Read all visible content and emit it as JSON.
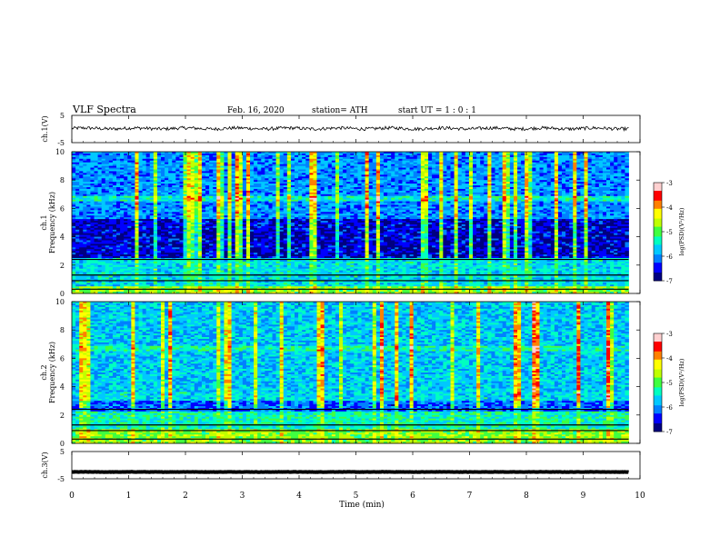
{
  "header": {
    "title": "VLF Spectra",
    "date": "Feb. 16, 2020",
    "station": "station= ATH",
    "start": "start UT = 1 : 0 : 1"
  },
  "colors": {
    "colormap": [
      "#000080",
      "#0000ff",
      "#0080ff",
      "#00c8ff",
      "#00ffc0",
      "#40ff40",
      "#c0ff00",
      "#ffff00",
      "#ff8000",
      "#ff0000",
      "#ffd0d0"
    ]
  },
  "chart_data": [
    {
      "type": "line",
      "name": "ch1-voltage",
      "ylabel": "ch.1(V)",
      "ylim": [
        -5,
        5
      ],
      "yticks": [
        "5",
        "-5"
      ],
      "xlim": [
        0,
        10
      ],
      "approx_level": 0.2,
      "approx_noise": 0.6
    },
    {
      "type": "heatmap",
      "name": "ch1-spectrogram",
      "ylabel_line1": "ch.1",
      "ylabel_line2": "Frequency (kHz)",
      "ylim": [
        0,
        10
      ],
      "yticks": [
        "0",
        "2",
        "4",
        "6",
        "8",
        "10"
      ],
      "xlim": [
        0,
        10
      ],
      "colorbar": {
        "label": "log(PSD)(V²/Hz)",
        "ticks": [
          "-3",
          "-4",
          "-5",
          "-6",
          "-7"
        ],
        "range": [
          -7,
          -3
        ]
      }
    },
    {
      "type": "heatmap",
      "name": "ch2-spectrogram",
      "ylabel_line1": "ch.2",
      "ylabel_line2": "Frequency (kHz)",
      "ylim": [
        0,
        10
      ],
      "yticks": [
        "0",
        "2",
        "4",
        "6",
        "8",
        "10"
      ],
      "xlim": [
        0,
        10
      ],
      "colorbar": {
        "label": "log(PSD)(V²/Hz)",
        "ticks": [
          "-3",
          "-4",
          "-5",
          "-6",
          "-7"
        ],
        "range": [
          -7,
          -3
        ]
      }
    },
    {
      "type": "line",
      "name": "ch3-voltage",
      "ylabel": "ch.3(V)",
      "ylim": [
        -5,
        5
      ],
      "yticks": [
        "5",
        "-5"
      ],
      "xlim": [
        0,
        10
      ],
      "approx_level": -2.5,
      "approx_noise": 0.05
    }
  ],
  "xaxis": {
    "label": "Time (min)",
    "ticks": [
      "0",
      "1",
      "2",
      "3",
      "4",
      "5",
      "6",
      "7",
      "8",
      "9",
      "10"
    ],
    "data_end": 9.8
  }
}
